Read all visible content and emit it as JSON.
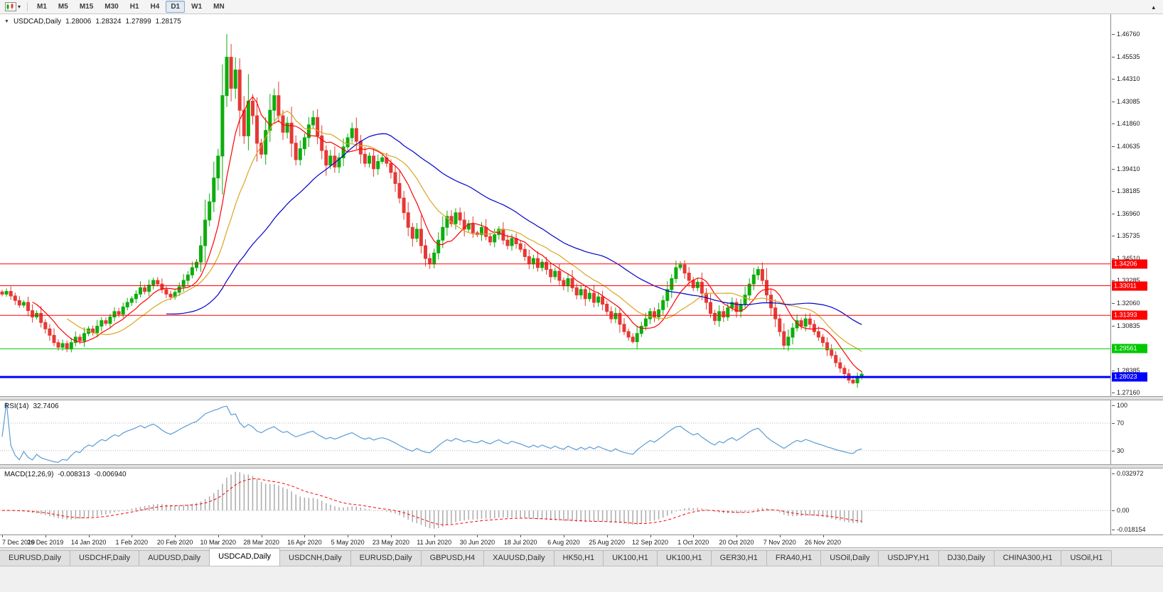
{
  "toolbar": {
    "caret": "▾",
    "collapse_arrow": "▴",
    "timeframes": [
      {
        "label": "M1",
        "active": false
      },
      {
        "label": "M5",
        "active": false
      },
      {
        "label": "M15",
        "active": false
      },
      {
        "label": "M30",
        "active": false
      },
      {
        "label": "H1",
        "active": false
      },
      {
        "label": "H4",
        "active": false
      },
      {
        "label": "D1",
        "active": true
      },
      {
        "label": "W1",
        "active": false
      },
      {
        "label": "MN",
        "active": false
      }
    ]
  },
  "chart": {
    "collapse_icon": "▼",
    "symbol": "USDCAD,Daily",
    "open": "1.28006",
    "high": "1.28324",
    "low": "1.27899",
    "close": "1.28175"
  },
  "chart_data": {
    "type": "candlestick",
    "title": "USDCAD,Daily",
    "x_labels": [
      "7 Dec 2019",
      "26 Dec 2019",
      "14 Jan 2020",
      "1 Feb 2020",
      "20 Feb 2020",
      "10 Mar 2020",
      "28 Mar 2020",
      "16 Apr 2020",
      "5 May 2020",
      "23 May 2020",
      "11 Jun 2020",
      "30 Jun 2020",
      "18 Jul 2020",
      "6 Aug 2020",
      "25 Aug 2020",
      "12 Sep 2020",
      "1 Oct 2020",
      "20 Oct 2020",
      "7 Nov 2020",
      "26 Nov 2020"
    ],
    "x_label_every": 10,
    "closes": [
      1.3255,
      1.327,
      1.3245,
      1.322,
      1.3195,
      1.321,
      1.3165,
      1.313,
      1.315,
      1.31,
      1.3065,
      1.303,
      1.299,
      1.2965,
      1.2985,
      1.2955,
      1.299,
      1.302,
      1.3,
      1.304,
      1.3065,
      1.3045,
      1.308,
      1.311,
      1.3095,
      1.313,
      1.316,
      1.3145,
      1.3185,
      1.321,
      1.323,
      1.3255,
      1.329,
      1.327,
      1.3305,
      1.333,
      1.331,
      1.328,
      1.3255,
      1.324,
      1.3265,
      1.3295,
      1.333,
      1.336,
      1.34,
      1.343,
      1.352,
      1.366,
      1.376,
      1.389,
      1.401,
      1.434,
      1.455,
      1.438,
      1.448,
      1.426,
      1.412,
      1.431,
      1.423,
      1.408,
      1.402,
      1.415,
      1.426,
      1.434,
      1.423,
      1.414,
      1.419,
      1.408,
      1.399,
      1.405,
      1.411,
      1.418,
      1.422,
      1.412,
      1.404,
      1.396,
      1.401,
      1.395,
      1.4,
      1.406,
      1.411,
      1.416,
      1.409,
      1.402,
      1.397,
      1.401,
      1.394,
      1.398,
      1.4,
      1.397,
      1.392,
      1.386,
      1.378,
      1.37,
      1.362,
      1.356,
      1.361,
      1.352,
      1.345,
      1.342,
      1.348,
      1.355,
      1.362,
      1.368,
      1.364,
      1.37,
      1.366,
      1.361,
      1.364,
      1.359,
      1.358,
      1.362,
      1.357,
      1.354,
      1.358,
      1.361,
      1.355,
      1.352,
      1.356,
      1.353,
      1.35,
      1.346,
      1.342,
      1.345,
      1.34,
      1.343,
      1.339,
      1.335,
      1.338,
      1.333,
      1.33,
      1.334,
      1.329,
      1.325,
      1.328,
      1.323,
      1.326,
      1.321,
      1.324,
      1.32,
      1.316,
      1.312,
      1.315,
      1.309,
      1.305,
      1.302,
      1.2995,
      1.304,
      1.308,
      1.312,
      1.316,
      1.313,
      1.317,
      1.322,
      1.328,
      1.334,
      1.34,
      1.3415,
      1.337,
      1.333,
      1.329,
      1.332,
      1.326,
      1.321,
      1.315,
      1.311,
      1.316,
      1.313,
      1.318,
      1.321,
      1.316,
      1.32,
      1.325,
      1.331,
      1.336,
      1.339,
      1.333,
      1.325,
      1.318,
      1.312,
      1.305,
      1.2975,
      1.302,
      1.307,
      1.311,
      1.308,
      1.312,
      1.309,
      1.305,
      1.302,
      1.299,
      1.295,
      1.292,
      1.288,
      1.285,
      1.282,
      1.2785,
      1.277,
      1.2805,
      1.2818
    ],
    "wick_overrides": {
      "15": {
        "low": 1.2938
      },
      "52": {
        "high": 1.4676
      },
      "146": {
        "low": 1.2985
      },
      "181": {
        "low": 1.2952
      },
      "197": {
        "low": 1.2762
      }
    },
    "price_range": [
      1.269,
      1.4785
    ],
    "right_gap_ratio": 0.222,
    "up_color": "#0DAD0D",
    "down_color": "#E53935",
    "y_ticks": [
      "1.46760",
      "1.45535",
      "1.44310",
      "1.43085",
      "1.41860",
      "1.40635",
      "1.39410",
      "1.38185",
      "1.36960",
      "1.35735",
      "1.34510",
      "1.33285",
      "1.32060",
      "1.30835",
      "1.29610",
      "1.28385",
      "1.27160"
    ],
    "h_lines": [
      {
        "price": 1.34206,
        "label": "1.34206",
        "color": "#FF0000",
        "width": 1
      },
      {
        "price": 1.33011,
        "label": "1.33011",
        "color": "#FF0000",
        "width": 1
      },
      {
        "price": 1.31393,
        "label": "1.31393",
        "color": "#FF0000",
        "width": 1
      },
      {
        "price": 1.29561,
        "label": "1.29561",
        "color": "#00C800",
        "width": 1
      },
      {
        "price": 1.28023,
        "label": "1.28023",
        "color": "#0000FF",
        "width": 3
      }
    ],
    "moving_averages": [
      {
        "period": 8,
        "color": "#FF0000"
      },
      {
        "period": 16,
        "color": "#DAA520"
      },
      {
        "period": 39,
        "color": "#0000CC"
      }
    ],
    "rsi": {
      "label": "RSI(14)",
      "value": "32.7406",
      "period": 14,
      "color": "#5B9BD5",
      "levels": [
        70,
        30
      ],
      "ticks": [
        {
          "v": 100,
          "label": "100"
        },
        {
          "v": 70,
          "label": "70"
        },
        {
          "v": 30,
          "label": "30"
        }
      ],
      "range": [
        8,
        103
      ]
    },
    "macd": {
      "label": "MACD(12,26,9)",
      "value_main": "-0.008313",
      "value_signal": "-0.006940",
      "fast": 12,
      "slow": 26,
      "signal": 9,
      "hist_color": "#ABABAB",
      "signal_color": "#FF0000",
      "ticks": [
        {
          "v": 0.032972,
          "label": "0.032972"
        },
        {
          "v": 0,
          "label": "0.00"
        },
        {
          "v": -0.018154,
          "label": "-0.018154"
        }
      ],
      "range": [
        -0.0195,
        0.034
      ]
    }
  },
  "tabs": [
    {
      "label": "EURUSD,Daily",
      "active": false
    },
    {
      "label": "USDCHF,Daily",
      "active": false
    },
    {
      "label": "AUDUSD,Daily",
      "active": false
    },
    {
      "label": "USDCAD,Daily",
      "active": true
    },
    {
      "label": "USDCNH,Daily",
      "active": false
    },
    {
      "label": "EURUSD,Daily",
      "active": false
    },
    {
      "label": "GBPUSD,H4",
      "active": false
    },
    {
      "label": "XAUUSD,Daily",
      "active": false
    },
    {
      "label": "HK50,H1",
      "active": false
    },
    {
      "label": "UK100,H1",
      "active": false
    },
    {
      "label": "UK100,H1",
      "active": false
    },
    {
      "label": "GER30,H1",
      "active": false
    },
    {
      "label": "FRA40,H1",
      "active": false
    },
    {
      "label": "USOil,Daily",
      "active": false
    },
    {
      "label": "USDJPY,H1",
      "active": false
    },
    {
      "label": "DJ30,Daily",
      "active": false
    },
    {
      "label": "CHINA300,H1",
      "active": false
    },
    {
      "label": "USOil,H1",
      "active": false
    }
  ]
}
